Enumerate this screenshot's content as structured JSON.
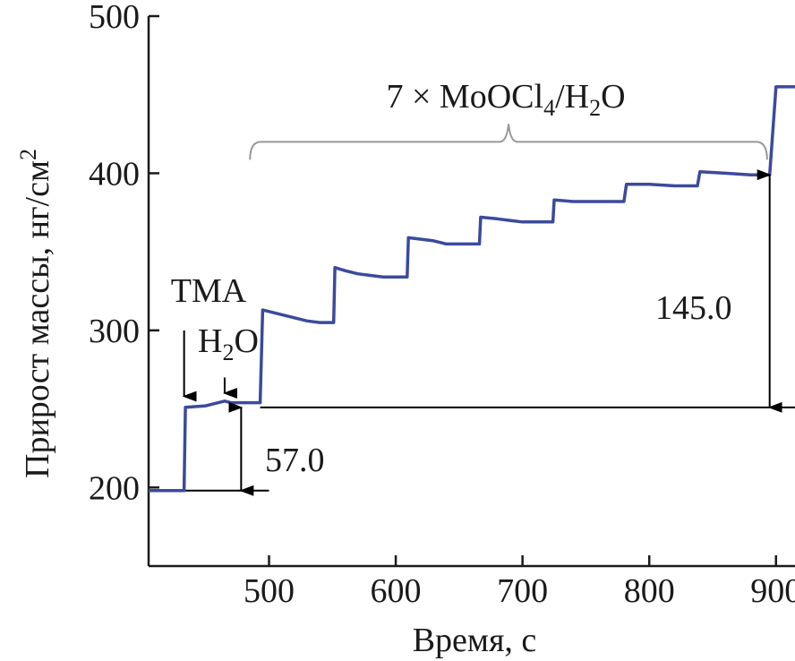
{
  "chart_data": {
    "type": "line",
    "title": "",
    "xlabel": "Время, с",
    "ylabel": "Прирост массы, нг/см²",
    "xlim": [
      405,
      915
    ],
    "ylim": [
      150,
      500
    ],
    "xticks": [
      500,
      600,
      700,
      800,
      900
    ],
    "yticks": [
      200,
      300,
      400,
      500
    ],
    "grid": false,
    "series_color": "#3b4a9c",
    "series": [
      {
        "x": [
          405,
          433,
          434,
          450,
          465,
          470,
          493,
          495,
          500,
          510,
          520,
          530,
          540,
          551,
          552,
          560,
          570,
          580,
          590,
          609,
          610,
          620,
          630,
          640,
          650,
          666,
          667,
          680,
          690,
          700,
          709,
          724,
          725,
          740,
          760,
          780,
          782,
          800,
          820,
          838,
          840,
          860,
          880,
          892,
          895,
          900,
          915
        ],
        "y": [
          198,
          198,
          251,
          252,
          255,
          254,
          254,
          313,
          312,
          310,
          308,
          306,
          305,
          305,
          340,
          338,
          336,
          335,
          334,
          334,
          359,
          358,
          357,
          355,
          355,
          355,
          372,
          371,
          370,
          369,
          369,
          369,
          383,
          382,
          382,
          382,
          393,
          393,
          392,
          392,
          401,
          400,
          399,
          399,
          399,
          455,
          455
        ]
      }
    ],
    "baselines": [
      {
        "y": 198,
        "x": [
          405,
          500
        ]
      },
      {
        "y": 251,
        "x": [
          493,
          915
        ]
      }
    ],
    "arrows": [
      {
        "type": "down",
        "x": 433,
        "y_from": 300,
        "y_to": 258
      },
      {
        "type": "down",
        "x": 465,
        "y_from": 270,
        "y_to": 260
      },
      {
        "type": "double",
        "x": 478,
        "y_from": 198,
        "y_to": 251
      },
      {
        "type": "double",
        "x": 895,
        "y_from": 251,
        "y_to": 399
      }
    ],
    "brace": {
      "x_from": 485,
      "x_to": 893,
      "y": 420
    },
    "annotations": {
      "tma_label": "TMA",
      "h2o_main": "H",
      "h2o_sub": "2",
      "h2o_tail": "O",
      "cycles_prefix": "7 × MoOCl",
      "cycles_sub1": "4",
      "cycles_mid": "/H",
      "cycles_sub2": "2",
      "cycles_tail": "O",
      "step1_value": "57.0",
      "step2_value": "145.0"
    },
    "ylabel_parts": {
      "base": "Прирост массы, нг/см",
      "sup": "2"
    }
  }
}
